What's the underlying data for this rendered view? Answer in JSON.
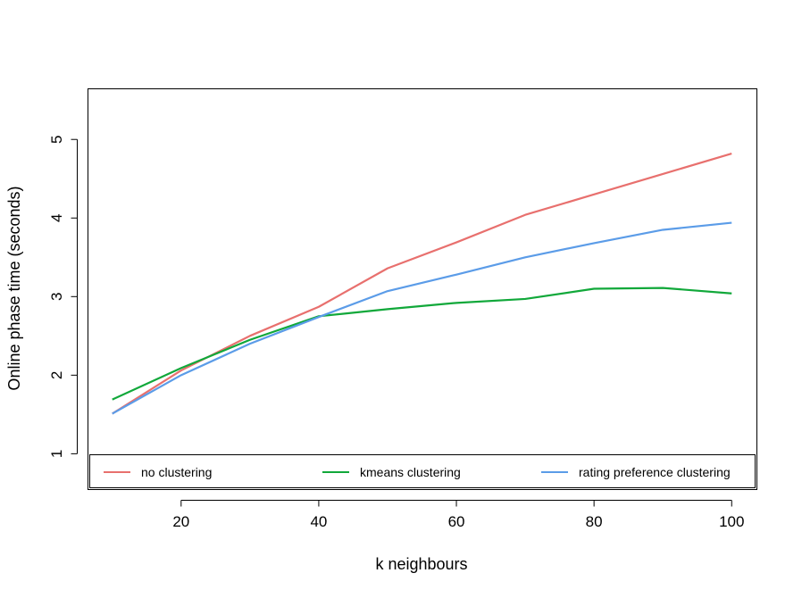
{
  "chart_data": {
    "type": "line",
    "title": "",
    "xlabel": "k neighbours",
    "ylabel": "Online phase time (seconds)",
    "xlim": [
      6.4,
      103.6
    ],
    "ylim": [
      0.55,
      5.65
    ],
    "xticks": [
      20,
      40,
      60,
      80,
      100
    ],
    "yticks": [
      1,
      2,
      3,
      4,
      5
    ],
    "x": [
      10,
      20,
      30,
      40,
      50,
      60,
      70,
      80,
      90,
      100
    ],
    "series": [
      {
        "name": "no clustering",
        "color": "#e8706e",
        "values": [
          1.51,
          2.06,
          2.5,
          2.87,
          3.36,
          3.69,
          4.04,
          4.3,
          4.56,
          4.82
        ]
      },
      {
        "name": "kmeans clustering",
        "color": "#11a83a",
        "values": [
          1.69,
          2.09,
          2.45,
          2.75,
          2.84,
          2.92,
          2.97,
          3.1,
          3.11,
          3.04
        ]
      },
      {
        "name": "rating preference clustering",
        "color": "#5b9ce8",
        "values": [
          1.51,
          2.0,
          2.4,
          2.74,
          3.07,
          3.28,
          3.5,
          3.68,
          3.85,
          3.94
        ]
      }
    ],
    "legend": {
      "placement": "bottom",
      "layout": "horizontal"
    },
    "grid": false
  }
}
